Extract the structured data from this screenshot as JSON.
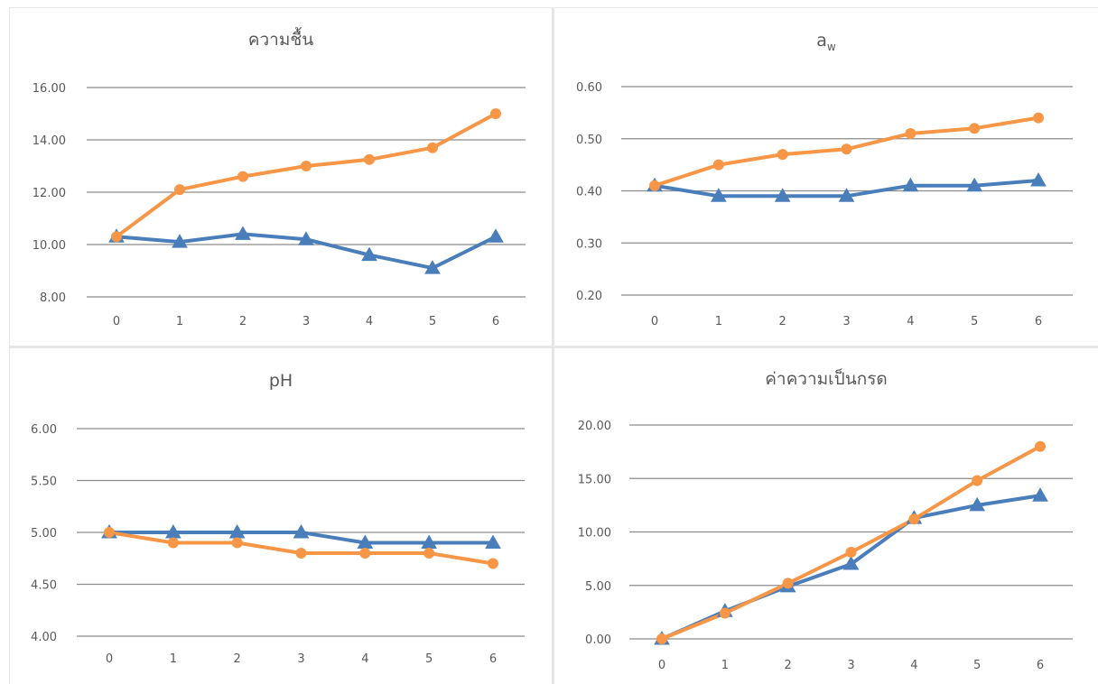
{
  "palette": {
    "series_a": "#4a7ebb",
    "series_b": "#f79646",
    "grid": "#8c8c8c",
    "text": "#595959",
    "divider": "#e6e6e6"
  },
  "chart_data": [
    {
      "type": "line",
      "title": "ความชื้น",
      "title_sub": "",
      "x": [
        0,
        1,
        2,
        3,
        4,
        5,
        6
      ],
      "ylim": [
        8,
        16
      ],
      "yticks": [
        "8.00",
        "10.00",
        "12.00",
        "14.00",
        "16.00"
      ],
      "grid": true,
      "legend": "none",
      "series": [
        {
          "marker": "triangle",
          "color": "#4a7ebb",
          "values": [
            10.3,
            10.1,
            10.4,
            10.2,
            9.6,
            9.1,
            10.3
          ]
        },
        {
          "marker": "circle",
          "color": "#f79646",
          "values": [
            10.3,
            12.1,
            12.6,
            13.0,
            13.25,
            13.7,
            15.0
          ]
        }
      ]
    },
    {
      "type": "line",
      "title": "a",
      "title_sub": "w",
      "x": [
        0,
        1,
        2,
        3,
        4,
        5,
        6
      ],
      "ylim": [
        0.2,
        0.6
      ],
      "yticks": [
        "0.20",
        "0.30",
        "0.40",
        "0.50",
        "0.60"
      ],
      "grid": true,
      "legend": "none",
      "series": [
        {
          "marker": "triangle",
          "color": "#4a7ebb",
          "values": [
            0.41,
            0.39,
            0.39,
            0.39,
            0.41,
            0.41,
            0.42
          ]
        },
        {
          "marker": "circle",
          "color": "#f79646",
          "values": [
            0.41,
            0.45,
            0.47,
            0.48,
            0.51,
            0.52,
            0.54
          ]
        }
      ]
    },
    {
      "type": "line",
      "title": "pH",
      "title_sub": "",
      "x": [
        0,
        1,
        2,
        3,
        4,
        5,
        6
      ],
      "ylim": [
        4,
        6
      ],
      "yticks": [
        "4.00",
        "4.50",
        "5.00",
        "5.50",
        "6.00"
      ],
      "grid": true,
      "legend": "none",
      "series": [
        {
          "marker": "triangle",
          "color": "#4a7ebb",
          "values": [
            5.0,
            5.0,
            5.0,
            5.0,
            4.9,
            4.9,
            4.9
          ]
        },
        {
          "marker": "circle",
          "color": "#f79646",
          "values": [
            5.0,
            4.9,
            4.9,
            4.8,
            4.8,
            4.8,
            4.7
          ]
        }
      ]
    },
    {
      "type": "line",
      "title": "ค่าความเป็นกรด",
      "title_sub": "",
      "x": [
        0,
        1,
        2,
        3,
        4,
        5,
        6
      ],
      "ylim": [
        0,
        20
      ],
      "yticks": [
        "0.00",
        "5.00",
        "10.00",
        "15.00",
        "20.00"
      ],
      "grid": true,
      "legend": "none",
      "series": [
        {
          "marker": "triangle",
          "color": "#4a7ebb",
          "values": [
            0.0,
            2.6,
            4.9,
            7.0,
            11.3,
            12.5,
            13.4
          ]
        },
        {
          "marker": "circle",
          "color": "#f79646",
          "values": [
            0.0,
            2.4,
            5.2,
            8.1,
            11.2,
            14.8,
            18.0
          ]
        }
      ]
    }
  ]
}
